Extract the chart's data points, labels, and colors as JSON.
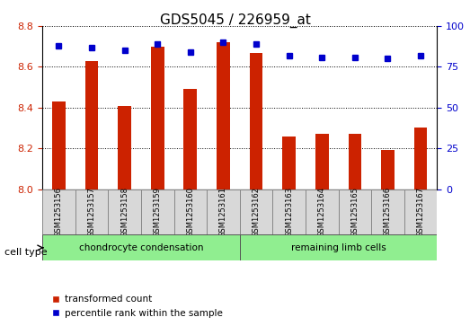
{
  "title": "GDS5045 / 226959_at",
  "samples": [
    "GSM1253156",
    "GSM1253157",
    "GSM1253158",
    "GSM1253159",
    "GSM1253160",
    "GSM1253161",
    "GSM1253162",
    "GSM1253163",
    "GSM1253164",
    "GSM1253165",
    "GSM1253166",
    "GSM1253167"
  ],
  "transformed_counts": [
    8.43,
    8.63,
    8.41,
    8.7,
    8.49,
    8.72,
    8.67,
    8.26,
    8.27,
    8.27,
    8.19,
    8.3
  ],
  "percentile_ranks": [
    88,
    87,
    85,
    89,
    84,
    90,
    89,
    82,
    81,
    81,
    80,
    82
  ],
  "cell_types": [
    "chondrocyte condensation",
    "chondrocyte condensation",
    "chondrocyte condensation",
    "chondrocyte condensation",
    "chondrocyte condensation",
    "chondrocyte condensation",
    "remaining limb cells",
    "remaining limb cells",
    "remaining limb cells",
    "remaining limb cells",
    "remaining limb cells",
    "remaining limb cells"
  ],
  "cell_type_labels": [
    "chondrocyte condensation",
    "remaining limb cells"
  ],
  "cell_type_colors": [
    "#90ee90",
    "#90ee90"
  ],
  "ylim_left": [
    8.0,
    8.8
  ],
  "ylim_right": [
    0,
    100
  ],
  "yticks_left": [
    8.0,
    8.2,
    8.4,
    8.6,
    8.8
  ],
  "yticks_right": [
    0,
    25,
    50,
    75,
    100
  ],
  "bar_color": "#cc2200",
  "dot_color": "#0000cc",
  "bar_width": 0.4,
  "bg_color": "#ffffff",
  "grid_color": "#000000",
  "tick_label_color_left": "#cc2200",
  "tick_label_color_right": "#0000cc",
  "legend_labels": [
    "transformed count",
    "percentile rank within the sample"
  ],
  "legend_colors": [
    "#cc2200",
    "#0000cc"
  ]
}
